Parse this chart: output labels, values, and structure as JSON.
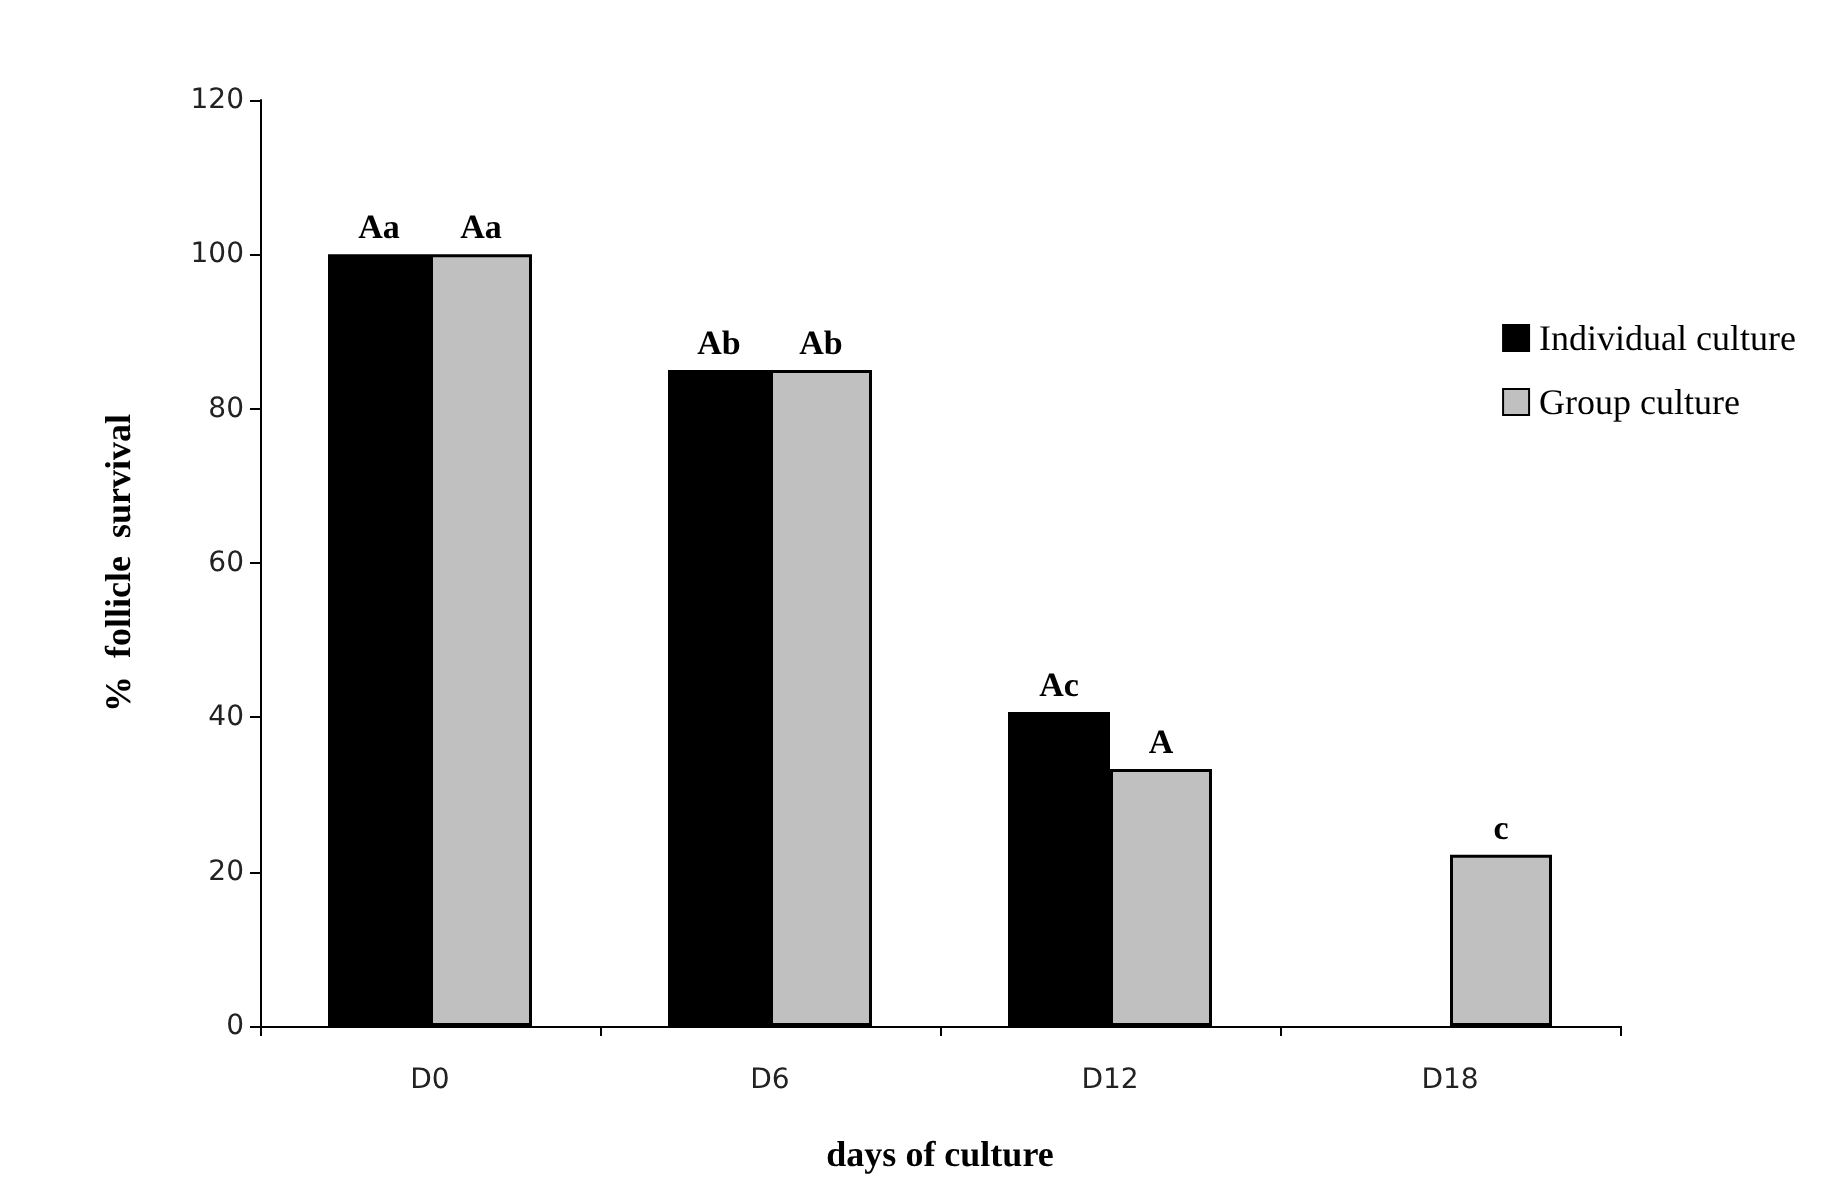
{
  "chart_data": {
    "type": "bar",
    "xlabel": "days of culture",
    "ylabel": "%  follicle  survival",
    "categories": [
      "D0",
      "D6",
      "D12",
      "D18"
    ],
    "series": [
      {
        "name": "Individual culture",
        "color": "#000000",
        "values": [
          100,
          85,
          40.7,
          null
        ],
        "value_labels": [
          "Aa",
          "Ab",
          "Ac",
          null
        ]
      },
      {
        "name": "Group culture",
        "color": "#c0c0c0",
        "values": [
          100,
          85,
          33.3,
          22.2
        ],
        "value_labels": [
          "Aa",
          "Ab",
          "A",
          "c"
        ]
      }
    ],
    "ylim": [
      0,
      120
    ],
    "yticks": [
      0,
      20,
      40,
      60,
      80,
      100,
      120
    ],
    "grid": false,
    "legend": "right"
  }
}
